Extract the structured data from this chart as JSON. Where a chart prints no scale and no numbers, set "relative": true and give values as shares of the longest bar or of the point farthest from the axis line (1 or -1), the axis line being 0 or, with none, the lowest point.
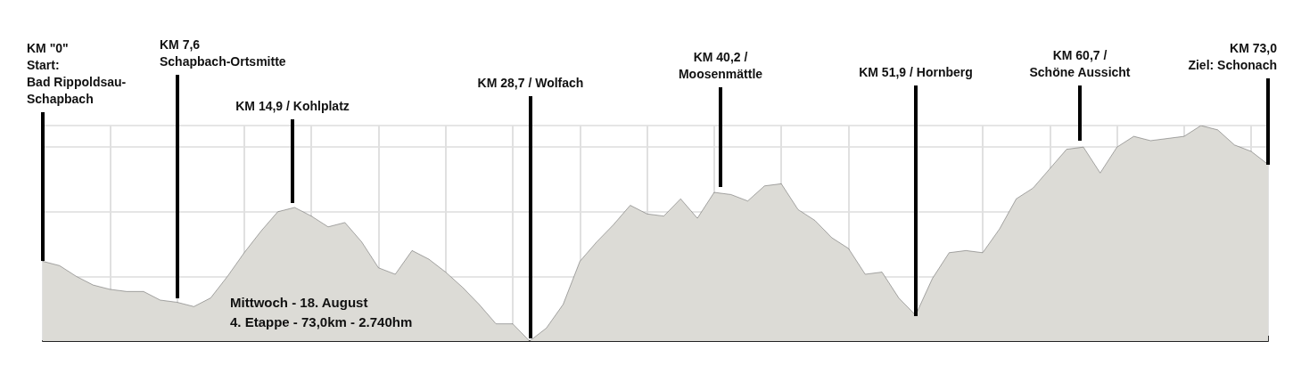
{
  "chart_data": {
    "type": "area",
    "relative": true,
    "color": "#333333",
    "grid": true,
    "marker": "none",
    "categories": [
      null,
      null,
      null,
      null,
      null,
      null,
      null,
      null,
      null,
      null,
      null,
      null,
      null,
      null,
      null,
      null,
      null,
      null,
      null,
      null,
      null,
      null,
      null,
      null,
      null,
      null,
      null,
      null,
      null,
      null,
      null,
      null,
      null,
      null,
      null,
      null,
      null,
      null,
      null,
      null,
      null,
      null,
      null,
      null,
      null,
      null,
      null,
      null,
      null,
      null,
      null,
      null,
      null,
      null,
      null,
      null,
      null,
      null,
      null,
      null,
      null,
      null,
      null,
      null,
      null,
      null,
      null,
      null,
      null,
      null,
      null,
      null,
      null,
      null
    ],
    "values": [
      0.37,
      0.35,
      0.3,
      0.26,
      0.24,
      0.23,
      0.23,
      0.19,
      0.18,
      0.16,
      0.2,
      0.3,
      0.41,
      0.51,
      0.6,
      0.62,
      0.58,
      0.53,
      0.55,
      0.46,
      0.34,
      0.31,
      0.42,
      0.38,
      0.32,
      0.25,
      0.17,
      0.08,
      0.08,
      0.0,
      0.06,
      0.17,
      0.37,
      0.46,
      0.54,
      0.63,
      0.59,
      0.58,
      0.66,
      0.57,
      0.69,
      0.68,
      0.65,
      0.72,
      0.73,
      0.61,
      0.56,
      0.48,
      0.43,
      0.31,
      0.32,
      0.2,
      0.12,
      0.29,
      0.41,
      0.42,
      0.41,
      0.52,
      0.66,
      0.71,
      0.8,
      0.89,
      0.9,
      0.78,
      0.9,
      0.95,
      0.93,
      0.94,
      0.95,
      1.0,
      0.98,
      0.91,
      0.88,
      0.82
    ],
    "annotations": [
      "KM \"0\"\nStart:\nBad Rippoldsau-\nSchapbach",
      "KM 7,6\nSchapbach-Ortsmitte",
      "KM 14,9 / Kohlplatz",
      "KM 28,7 / Wolfach",
      "KM 40,2 /\nMoosenmättle",
      "KM 51,9 / Hornberg",
      "KM 60,7 /\nSchöne Aussicht",
      "KM 73,0\nZiel: Schonach",
      "Mittwoch - 18. August\n4. Etappe - 73,0km - 2.740hm"
    ]
  }
}
